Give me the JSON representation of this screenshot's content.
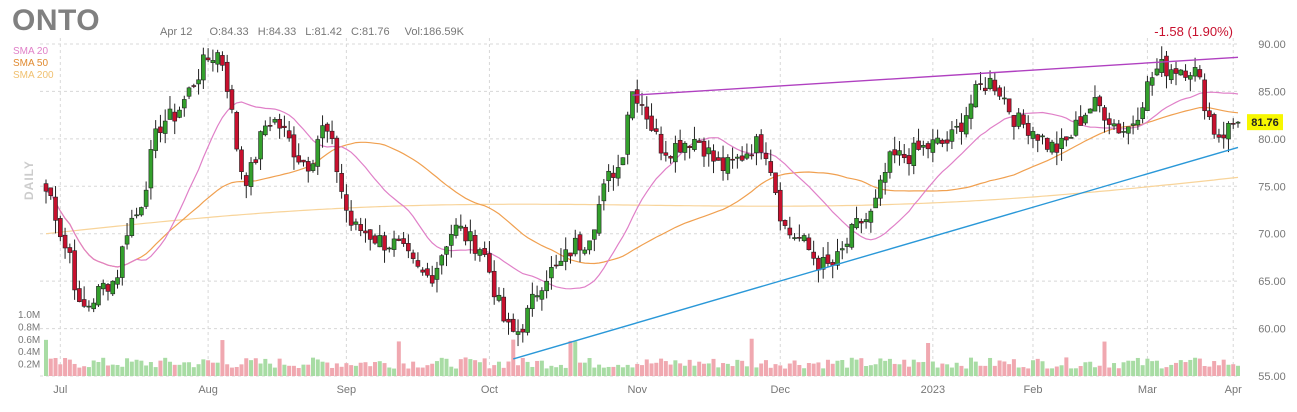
{
  "header": {
    "ticker": "ONTO",
    "date": "Apr 12",
    "open": "O:84.33",
    "high": "H:84.33",
    "low": "L:81.42",
    "close": "C:81.76",
    "volume": "Vol:186.59K",
    "change": "-1.58 (1.90%)",
    "timeframe": "DAILY"
  },
  "colors": {
    "up": "#33a02c",
    "down": "#c8102e",
    "sma20": "#e080c8",
    "sma50": "#f0a050",
    "sma200": "#f8d49a",
    "resistance": "#b040c0",
    "support": "#2a98d8",
    "price_tag": "#f7f700",
    "grid": "#d8d8d8",
    "axis_text": "#777777"
  },
  "chart_data": {
    "type": "candlestick",
    "title": "ONTO",
    "price_axis": {
      "ticks": [
        "90.00",
        "85.00",
        "80.00",
        "75.00",
        "70.00",
        "65.00",
        "60.00",
        "55.00"
      ],
      "range": [
        55,
        90
      ]
    },
    "volume_axis": {
      "ticks": [
        "1.0M",
        "0.8M",
        "0.6M",
        "0.4M",
        "0.2M"
      ],
      "max": 1.0
    },
    "x_labels": [
      "Jul",
      "Aug",
      "Sep",
      "Oct",
      "Nov",
      "Dec",
      "2023",
      "Feb",
      "Mar",
      "Apr"
    ],
    "last_price": "81.76",
    "legend": [
      {
        "key": "sma20",
        "label": "SMA 20"
      },
      {
        "key": "sma50",
        "label": "SMA 50"
      },
      {
        "key": "sma200",
        "label": "SMA 200"
      }
    ],
    "anchors": {
      "Jul": [
        0,
        74.5
      ],
      "Jul-early": [
        5,
        68.0
      ],
      "Jul-low": [
        7,
        62.0
      ],
      "Jul-mid": [
        14,
        65.0
      ],
      "Jul-end": [
        18,
        71.5
      ],
      "Aug-early": [
        25,
        82.0
      ],
      "Aug-peak": [
        36,
        89.0
      ],
      "Aug-mid": [
        42,
        76.0
      ],
      "Aug-late": [
        47,
        82.0
      ],
      "Aug-end": [
        55,
        77.5
      ],
      "Sep-early": [
        58,
        81.0
      ],
      "Sep-mid": [
        65,
        70.5
      ],
      "Sep-late": [
        72,
        69.0
      ],
      "Sep-end": [
        80,
        65.5
      ],
      "Oct-early": [
        86,
        70.5
      ],
      "Oct-mid": [
        90,
        69.0
      ],
      "Oct-low": [
        98,
        59.5
      ],
      "Oct-late": [
        106,
        66.0
      ],
      "Nov-early": [
        112,
        69.0
      ],
      "Nov-mid": [
        120,
        77.0
      ],
      "Nov-peak": [
        123,
        85.0
      ],
      "Nov-late": [
        130,
        79.0
      ],
      "Nov-end": [
        136,
        80.0
      ],
      "Dec-early": [
        142,
        77.0
      ],
      "Dec-mid": [
        150,
        79.5
      ],
      "Dec-late": [
        156,
        70.0
      ],
      "Dec-low": [
        164,
        66.5
      ],
      "Jan-early": [
        172,
        71.5
      ],
      "Jan-mid": [
        178,
        78.0
      ],
      "Jan-late": [
        188,
        79.5
      ],
      "Feb-peak": [
        198,
        86.0
      ],
      "Feb-mid": [
        205,
        81.5
      ],
      "Feb-late": [
        212,
        79.0
      ],
      "Mar-early": [
        220,
        83.5
      ],
      "Mar-mid": [
        226,
        81.0
      ],
      "Mar-late": [
        234,
        87.5
      ],
      "Apr-early": [
        240,
        87.5
      ],
      "Apr-dip": [
        246,
        80.5
      ],
      "Apr-end": [
        250,
        81.76
      ]
    },
    "trendlines": [
      {
        "name": "resistance",
        "from": [
          123,
          84.6
        ],
        "to": [
          250,
          88.6
        ]
      },
      {
        "name": "support",
        "from": [
          98,
          56.8
        ],
        "to": [
          250,
          79.1
        ]
      }
    ]
  }
}
